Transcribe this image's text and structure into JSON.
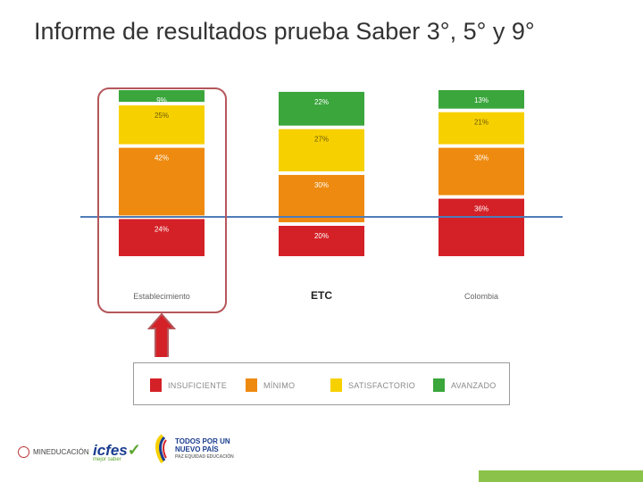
{
  "title": "Informe de resultados prueba Saber 3°, 5° y 9°",
  "colors": {
    "insuficiente": "#d42127",
    "minimo": "#ee8a0f",
    "satisfactorio": "#f7d000",
    "avanzado": "#3aa63c",
    "reference_line": "#4f7cb8",
    "highlight": "#b5575b"
  },
  "chart_data": {
    "type": "bar",
    "stacked": true,
    "categories": [
      "Establecimiento",
      "ETC",
      "Colombia"
    ],
    "series": [
      {
        "name": "INSUFICIENTE",
        "values": [
          24,
          20,
          36
        ],
        "labels": [
          "24%",
          "20%",
          "36%"
        ]
      },
      {
        "name": "MÍNIMO",
        "values": [
          42,
          30,
          30
        ],
        "labels": [
          "42%",
          "30%",
          "30%"
        ]
      },
      {
        "name": "SATISFACTORIO",
        "values": [
          25,
          27,
          21
        ],
        "labels": [
          "25%",
          "27%",
          "21%"
        ]
      },
      {
        "name": "AVANZADO",
        "values": [
          9,
          22,
          13
        ],
        "labels": [
          "9%",
          "22%",
          "13%"
        ]
      }
    ],
    "legend_position": "bottom"
  },
  "legend": [
    "INSUFICIENTE",
    "MÍNIMO",
    "SATISFACTORIO",
    "AVANZADO"
  ],
  "footer": {
    "logo1": "MINEDUCACIÓN",
    "logo2_main": "icfes",
    "logo2_sub": "mejor saber",
    "logo3_line1": "TODOS POR UN",
    "logo3_line2": "NUEVO PAÍS",
    "logo3_line3": "PAZ  EQUIDAD  EDUCACIÓN"
  }
}
